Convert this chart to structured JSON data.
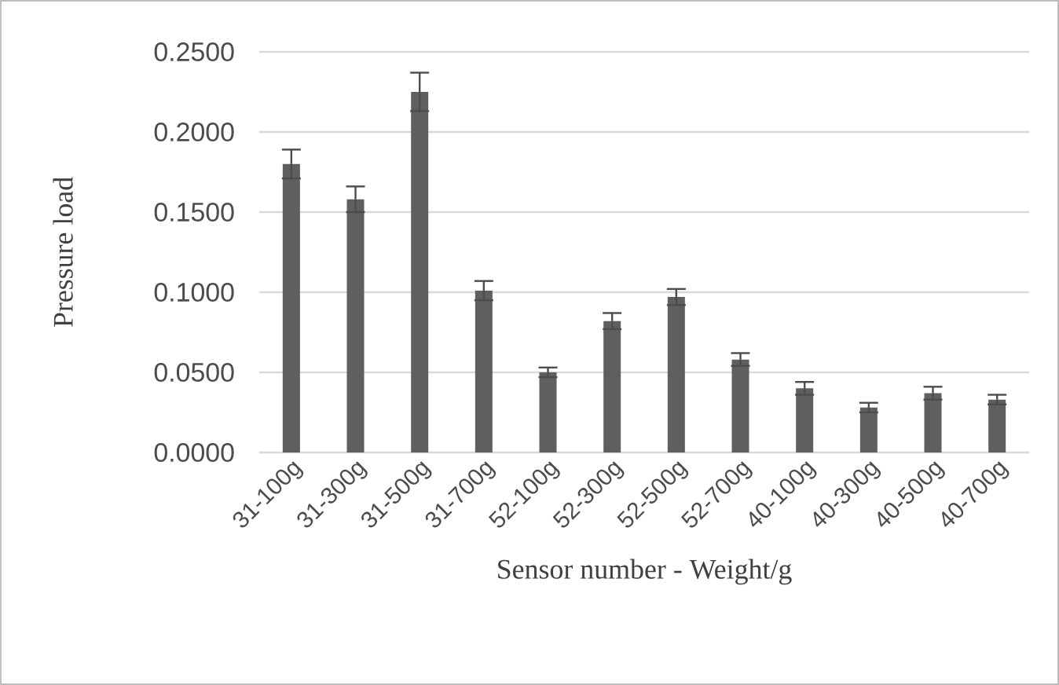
{
  "chart_data": {
    "type": "bar",
    "xlabel": "Sensor number - Weight/g",
    "ylabel": "Pressure load",
    "categories": [
      "31-100g",
      "31-300g",
      "31-500g",
      "31-700g",
      "52-100g",
      "52-300g",
      "52-500g",
      "52-700g",
      "40-100g",
      "40-300g",
      "40-500g",
      "40-700g"
    ],
    "values": [
      0.18,
      0.158,
      0.225,
      0.101,
      0.05,
      0.082,
      0.097,
      0.058,
      0.04,
      0.028,
      0.037,
      0.033
    ],
    "errors": [
      0.009,
      0.008,
      0.012,
      0.006,
      0.003,
      0.005,
      0.005,
      0.004,
      0.004,
      0.003,
      0.004,
      0.003
    ],
    "color": "#5f5f5f",
    "ylim": [
      0,
      0.25
    ],
    "yticks": [
      {
        "value": 0,
        "label": "0.0000"
      },
      {
        "value": 0.05,
        "label": "0.0500"
      },
      {
        "value": 0.1,
        "label": "0.1000"
      },
      {
        "value": 0.15,
        "label": "0.1500"
      },
      {
        "value": 0.2,
        "label": "0.2000"
      },
      {
        "value": 0.25,
        "label": "0.2500"
      }
    ],
    "grid": "y"
  }
}
